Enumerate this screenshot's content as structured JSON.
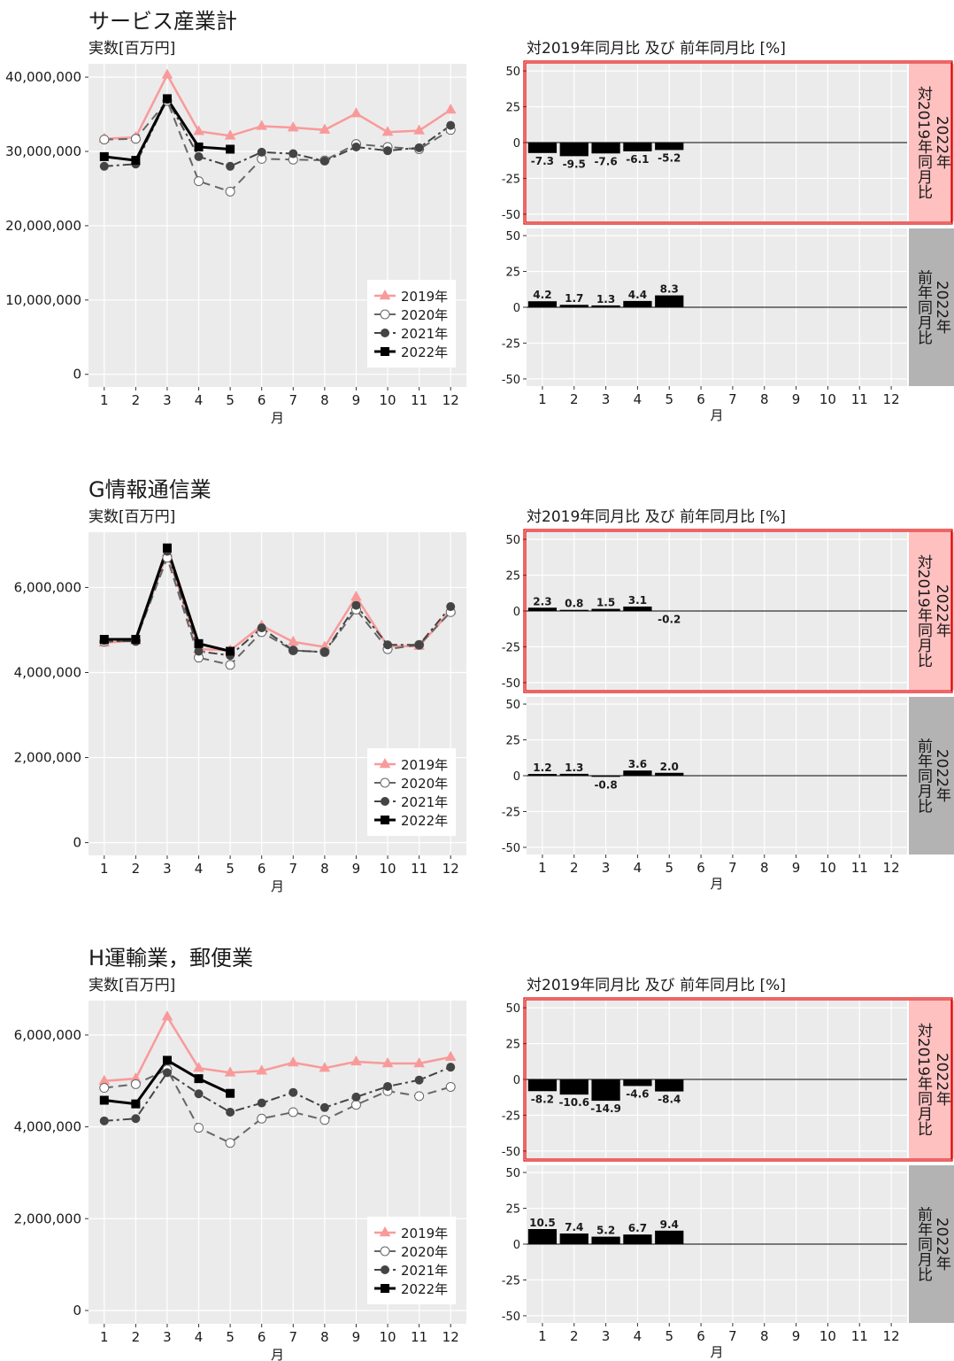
{
  "chart_data": [
    {
      "type": "line",
      "title": "サービス産業計",
      "subtitle": "実数[百万円]",
      "xlabel": "月",
      "x": [
        1,
        2,
        3,
        4,
        5,
        6,
        7,
        8,
        9,
        10,
        11,
        12
      ],
      "xlim": [
        0.5,
        12.5
      ],
      "xticks": [
        1,
        2,
        3,
        4,
        5,
        6,
        7,
        8,
        9,
        10,
        11,
        12
      ],
      "ylim": [
        -1700000,
        41800000
      ],
      "yticks": [
        0,
        {
          "value": 10000000,
          "label": "10,000,000"
        },
        {
          "value": 20000000,
          "label": "20,000,000"
        },
        {
          "value": 30000000,
          "label": "30,000,000"
        },
        {
          "value": 40000000,
          "label": "40,000,000"
        }
      ],
      "grid": true,
      "legend": "bottom-right",
      "series": [
        {
          "name": "2019年",
          "color": "#f99a9a",
          "marker": "triangle",
          "dash": "solid",
          "line_width": 2.5,
          "values": [
            31700000,
            31900000,
            40300000,
            32700000,
            32100000,
            33400000,
            33200000,
            32900000,
            35100000,
            32600000,
            32800000,
            35600000
          ]
        },
        {
          "name": "2020年",
          "color": "#666666",
          "marker": "circle-open",
          "dash": "longdash",
          "line_width": 2,
          "values": [
            31600000,
            31700000,
            36800000,
            26000000,
            24600000,
            29000000,
            28900000,
            28800000,
            31000000,
            30600000,
            30300000,
            32900000
          ]
        },
        {
          "name": "2021年",
          "color": "#444444",
          "marker": "circle",
          "dash": "dashdot",
          "line_width": 2,
          "values": [
            28000000,
            28300000,
            37000000,
            29300000,
            28000000,
            29900000,
            29700000,
            28700000,
            30600000,
            30100000,
            30500000,
            33500000
          ]
        },
        {
          "name": "2022年",
          "color": "#000000",
          "marker": "square",
          "dash": "solid",
          "line_width": 3,
          "values": [
            29300000,
            28800000,
            37100000,
            30600000,
            30300000,
            null,
            null,
            null,
            null,
            null,
            null,
            null
          ]
        }
      ]
    },
    {
      "type": "bar",
      "title": "対2019年同月比 及び 前年同月比 [%]",
      "xlabel": "月",
      "color": "#000000",
      "x": [
        1,
        2,
        3,
        4,
        5,
        6,
        7,
        8,
        9,
        10,
        11,
        12
      ],
      "xlim": [
        0.5,
        12.5
      ],
      "xticks": [
        1,
        2,
        3,
        4,
        5,
        6,
        7,
        8,
        9,
        10,
        11,
        12
      ],
      "ylim": [
        -55,
        55
      ],
      "yticks": [
        -50,
        -25,
        0,
        25,
        50
      ],
      "grid": true,
      "panels": [
        {
          "strip": [
            "2022年",
            "対2019年同月比"
          ],
          "strip_color": "#ffc0c0",
          "border_color": "#e00000",
          "values": [
            -7.3,
            -9.5,
            -7.6,
            -6.1,
            -5.2,
            null,
            null,
            null,
            null,
            null,
            null,
            null
          ],
          "value_labels": [
            "-7.3",
            "-9.5",
            "-7.6",
            "-6.1",
            "-5.2",
            null,
            null,
            null,
            null,
            null,
            null,
            null
          ]
        },
        {
          "strip": [
            "2022年",
            "前年同月比"
          ],
          "strip_color": "#b3b3b3",
          "values": [
            4.2,
            1.7,
            1.3,
            4.4,
            8.3,
            null,
            null,
            null,
            null,
            null,
            null,
            null
          ],
          "value_labels": [
            "4.2",
            "1.7",
            "1.3",
            "4.4",
            "8.3",
            null,
            null,
            null,
            null,
            null,
            null,
            null
          ]
        }
      ]
    },
    {
      "type": "line",
      "title": "G情報通信業",
      "subtitle": "実数[百万円]",
      "xlabel": "月",
      "x": [
        1,
        2,
        3,
        4,
        5,
        6,
        7,
        8,
        9,
        10,
        11,
        12
      ],
      "xlim": [
        0.5,
        12.5
      ],
      "xticks": [
        1,
        2,
        3,
        4,
        5,
        6,
        7,
        8,
        9,
        10,
        11,
        12
      ],
      "ylim": [
        -300000,
        7300000
      ],
      "yticks": [
        0,
        {
          "value": 2000000,
          "label": "2,000,000"
        },
        {
          "value": 4000000,
          "label": "4,000,000"
        },
        {
          "value": 6000000,
          "label": "6,000,000"
        }
      ],
      "grid": true,
      "legend": "bottom-right",
      "series": [
        {
          "name": "2019年",
          "color": "#f99a9a",
          "marker": "triangle",
          "dash": "solid",
          "line_width": 2.5,
          "values": [
            4700000,
            4750000,
            6820000,
            4550000,
            4520000,
            5100000,
            4720000,
            4600000,
            5780000,
            4620000,
            4620000,
            5450000
          ]
        },
        {
          "name": "2020年",
          "color": "#666666",
          "marker": "circle-open",
          "dash": "longdash",
          "line_width": 2,
          "values": [
            4720000,
            4750000,
            6700000,
            4350000,
            4180000,
            4950000,
            4520000,
            4480000,
            5480000,
            4550000,
            4650000,
            5420000
          ]
        },
        {
          "name": "2021年",
          "color": "#444444",
          "marker": "circle",
          "dash": "dashdot",
          "line_width": 2,
          "values": [
            4750000,
            4730000,
            6850000,
            4500000,
            4400000,
            5050000,
            4520000,
            4480000,
            5580000,
            4650000,
            4650000,
            5550000
          ]
        },
        {
          "name": "2022年",
          "color": "#000000",
          "marker": "square",
          "dash": "solid",
          "line_width": 3,
          "values": [
            4780000,
            4780000,
            6930000,
            4680000,
            4500000,
            null,
            null,
            null,
            null,
            null,
            null,
            null
          ]
        }
      ]
    },
    {
      "type": "bar",
      "title": "対2019年同月比 及び 前年同月比 [%]",
      "xlabel": "月",
      "color": "#000000",
      "x": [
        1,
        2,
        3,
        4,
        5,
        6,
        7,
        8,
        9,
        10,
        11,
        12
      ],
      "xlim": [
        0.5,
        12.5
      ],
      "xticks": [
        1,
        2,
        3,
        4,
        5,
        6,
        7,
        8,
        9,
        10,
        11,
        12
      ],
      "ylim": [
        -55,
        55
      ],
      "yticks": [
        -50,
        -25,
        0,
        25,
        50
      ],
      "grid": true,
      "panels": [
        {
          "strip": [
            "2022年",
            "対2019年同月比"
          ],
          "strip_color": "#ffc0c0",
          "border_color": "#e00000",
          "values": [
            2.3,
            0.8,
            1.5,
            3.1,
            -0.2,
            null,
            null,
            null,
            null,
            null,
            null,
            null
          ],
          "value_labels": [
            "2.3",
            "0.8",
            "1.5",
            "3.1",
            "-0.2",
            null,
            null,
            null,
            null,
            null,
            null,
            null
          ]
        },
        {
          "strip": [
            "2022年",
            "前年同月比"
          ],
          "strip_color": "#b3b3b3",
          "values": [
            1.2,
            1.3,
            -0.8,
            3.6,
            2.0,
            null,
            null,
            null,
            null,
            null,
            null,
            null
          ],
          "value_labels": [
            "1.2",
            "1.3",
            "-0.8",
            "3.6",
            "2.0",
            null,
            null,
            null,
            null,
            null,
            null,
            null
          ]
        }
      ]
    },
    {
      "type": "line",
      "title": "H運輸業，郵便業",
      "subtitle": "実数[百万円]",
      "xlabel": "月",
      "x": [
        1,
        2,
        3,
        4,
        5,
        6,
        7,
        8,
        9,
        10,
        11,
        12
      ],
      "xlim": [
        0.5,
        12.5
      ],
      "xticks": [
        1,
        2,
        3,
        4,
        5,
        6,
        7,
        8,
        9,
        10,
        11,
        12
      ],
      "ylim": [
        -290000,
        6750000
      ],
      "yticks": [
        0,
        {
          "value": 2000000,
          "label": "2,000,000"
        },
        {
          "value": 4000000,
          "label": "4,000,000"
        },
        {
          "value": 6000000,
          "label": "6,000,000"
        }
      ],
      "grid": true,
      "legend": "bottom-right",
      "series": [
        {
          "name": "2019年",
          "color": "#f99a9a",
          "marker": "triangle",
          "dash": "solid",
          "line_width": 2.5,
          "values": [
            5000000,
            5050000,
            6400000,
            5280000,
            5180000,
            5220000,
            5400000,
            5280000,
            5420000,
            5380000,
            5380000,
            5520000
          ]
        },
        {
          "name": "2020年",
          "color": "#666666",
          "marker": "circle-open",
          "dash": "longdash",
          "line_width": 2,
          "values": [
            4850000,
            4930000,
            5250000,
            3980000,
            3650000,
            4180000,
            4320000,
            4150000,
            4480000,
            4780000,
            4670000,
            4870000
          ]
        },
        {
          "name": "2021年",
          "color": "#444444",
          "marker": "circle",
          "dash": "dashdot",
          "line_width": 2,
          "values": [
            4130000,
            4180000,
            5180000,
            4720000,
            4320000,
            4520000,
            4750000,
            4420000,
            4650000,
            4880000,
            5020000,
            5300000
          ]
        },
        {
          "name": "2022年",
          "color": "#000000",
          "marker": "square",
          "dash": "solid",
          "line_width": 3,
          "values": [
            4580000,
            4500000,
            5450000,
            5050000,
            4730000,
            null,
            null,
            null,
            null,
            null,
            null,
            null
          ]
        }
      ]
    },
    {
      "type": "bar",
      "title": "対2019年同月比 及び 前年同月比 [%]",
      "xlabel": "月",
      "color": "#000000",
      "x": [
        1,
        2,
        3,
        4,
        5,
        6,
        7,
        8,
        9,
        10,
        11,
        12
      ],
      "xlim": [
        0.5,
        12.5
      ],
      "xticks": [
        1,
        2,
        3,
        4,
        5,
        6,
        7,
        8,
        9,
        10,
        11,
        12
      ],
      "ylim": [
        -55,
        55
      ],
      "yticks": [
        -50,
        -25,
        0,
        25,
        50
      ],
      "grid": true,
      "panels": [
        {
          "strip": [
            "2022年",
            "対2019年同月比"
          ],
          "strip_color": "#ffc0c0",
          "border_color": "#e00000",
          "values": [
            -8.2,
            -10.6,
            -14.9,
            -4.6,
            -8.4,
            null,
            null,
            null,
            null,
            null,
            null,
            null
          ],
          "value_labels": [
            "-8.2",
            "-10.6",
            "-14.9",
            "-4.6",
            "-8.4",
            null,
            null,
            null,
            null,
            null,
            null,
            null
          ]
        },
        {
          "strip": [
            "2022年",
            "前年同月比"
          ],
          "strip_color": "#b3b3b3",
          "values": [
            10.5,
            7.4,
            5.2,
            6.7,
            9.4,
            null,
            null,
            null,
            null,
            null,
            null,
            null
          ],
          "value_labels": [
            "10.5",
            "7.4",
            "5.2",
            "6.7",
            "9.4",
            null,
            null,
            null,
            null,
            null,
            null,
            null
          ]
        }
      ]
    }
  ]
}
